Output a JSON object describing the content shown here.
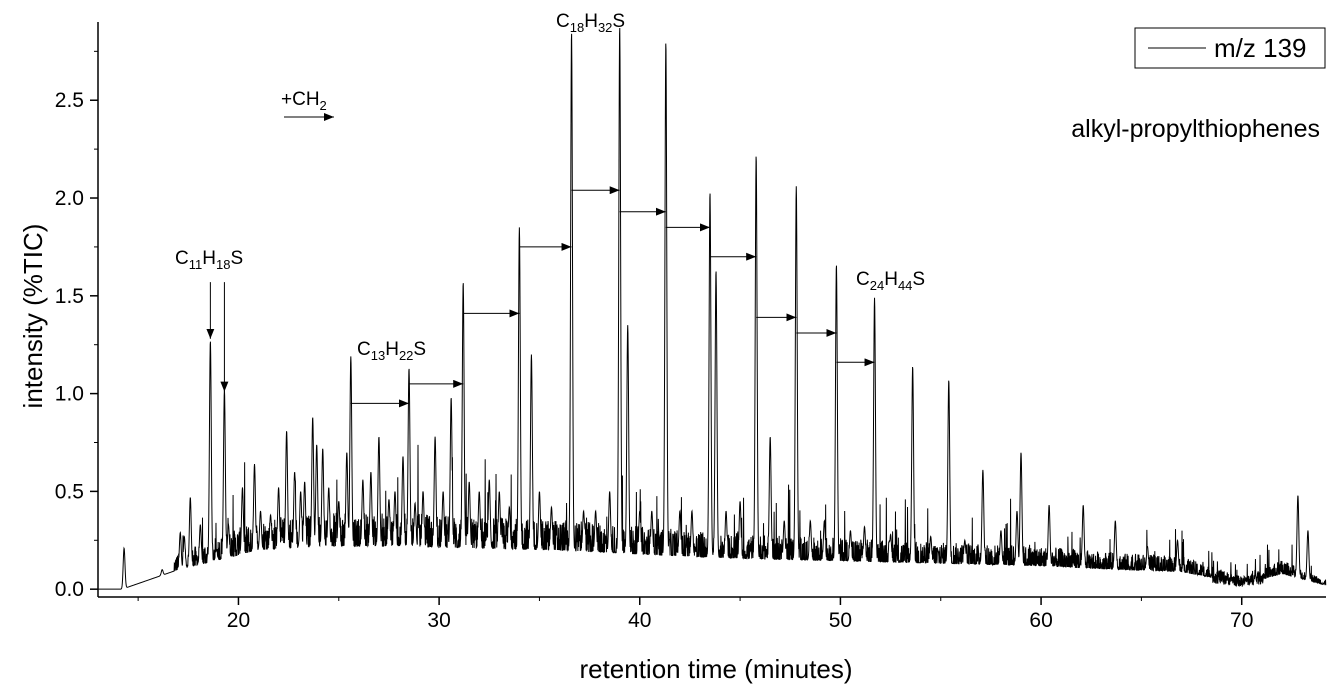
{
  "chart_data": {
    "type": "line",
    "title": "",
    "xlabel": "retention time (minutes)",
    "ylabel": "intensity (%TIC)",
    "xlim": [
      13,
      74.2
    ],
    "ylim": [
      -0.04,
      2.9
    ],
    "xticks": [
      20,
      30,
      40,
      50,
      60,
      70
    ],
    "yticks": [
      0.0,
      0.5,
      1.0,
      1.5,
      2.0,
      2.5
    ],
    "ytick_labels": [
      "0.0",
      "0.5",
      "1.0",
      "1.5",
      "2.0",
      "2.5"
    ],
    "legend": {
      "position": "top-right",
      "entries": [
        "m/z 139"
      ]
    },
    "subtitle": "alkyl-propylthiophenes",
    "series": [
      {
        "name": "m/z 139",
        "color": "#000000",
        "baseline": [
          [
            13.0,
            0.0
          ],
          [
            14.2,
            0.0
          ],
          [
            17.0,
            0.1
          ],
          [
            19.0,
            0.15
          ],
          [
            21.0,
            0.2
          ],
          [
            24.0,
            0.22
          ],
          [
            28.0,
            0.22
          ],
          [
            32.0,
            0.21
          ],
          [
            36.0,
            0.2
          ],
          [
            40.0,
            0.18
          ],
          [
            44.0,
            0.16
          ],
          [
            48.0,
            0.15
          ],
          [
            52.0,
            0.14
          ],
          [
            56.0,
            0.13
          ],
          [
            60.0,
            0.12
          ],
          [
            64.0,
            0.1
          ],
          [
            67.0,
            0.09
          ],
          [
            69.0,
            0.05
          ],
          [
            70.0,
            0.03
          ],
          [
            71.0,
            0.05
          ],
          [
            72.0,
            0.08
          ],
          [
            74.2,
            0.02
          ]
        ],
        "peaks": [
          [
            14.3,
            0.21
          ],
          [
            16.2,
            0.1
          ],
          [
            17.1,
            0.29
          ],
          [
            17.3,
            0.27
          ],
          [
            17.6,
            0.47
          ],
          [
            18.1,
            0.33
          ],
          [
            18.6,
            1.27
          ],
          [
            18.9,
            0.2
          ],
          [
            19.3,
            1.02
          ],
          [
            19.5,
            0.33
          ],
          [
            20.2,
            0.52
          ],
          [
            20.8,
            0.64
          ],
          [
            21.1,
            0.4
          ],
          [
            21.6,
            0.38
          ],
          [
            22.0,
            0.52
          ],
          [
            22.4,
            0.81
          ],
          [
            22.8,
            0.6
          ],
          [
            23.1,
            0.5
          ],
          [
            23.3,
            0.55
          ],
          [
            23.7,
            0.88
          ],
          [
            23.9,
            0.74
          ],
          [
            24.2,
            0.72
          ],
          [
            24.5,
            0.52
          ],
          [
            25.0,
            0.45
          ],
          [
            25.4,
            0.7
          ],
          [
            25.6,
            1.19
          ],
          [
            26.2,
            0.56
          ],
          [
            26.6,
            0.6
          ],
          [
            27.0,
            0.78
          ],
          [
            27.5,
            0.46
          ],
          [
            27.8,
            0.5
          ],
          [
            28.2,
            0.68
          ],
          [
            28.5,
            1.13
          ],
          [
            28.8,
            0.44
          ],
          [
            29.2,
            0.5
          ],
          [
            29.8,
            0.78
          ],
          [
            30.2,
            0.5
          ],
          [
            30.6,
            0.98
          ],
          [
            31.2,
            1.57
          ],
          [
            31.5,
            0.55
          ],
          [
            32.0,
            0.5
          ],
          [
            32.5,
            0.56
          ],
          [
            33.0,
            0.5
          ],
          [
            33.5,
            0.42
          ],
          [
            34.0,
            1.85
          ],
          [
            34.6,
            1.2
          ],
          [
            35.0,
            0.5
          ],
          [
            35.6,
            0.42
          ],
          [
            36.6,
            2.85
          ],
          [
            37.2,
            0.4
          ],
          [
            37.8,
            0.4
          ],
          [
            38.5,
            0.5
          ],
          [
            39.0,
            2.88
          ],
          [
            39.4,
            1.35
          ],
          [
            40.0,
            0.4
          ],
          [
            40.6,
            0.4
          ],
          [
            41.3,
            2.8
          ],
          [
            42.0,
            0.4
          ],
          [
            42.6,
            0.4
          ],
          [
            43.5,
            2.03
          ],
          [
            43.8,
            1.63
          ],
          [
            44.3,
            0.4
          ],
          [
            45.0,
            0.45
          ],
          [
            45.8,
            2.22
          ],
          [
            46.5,
            0.78
          ],
          [
            47.2,
            0.35
          ],
          [
            47.8,
            2.06
          ],
          [
            48.5,
            0.35
          ],
          [
            49.2,
            0.35
          ],
          [
            49.8,
            1.66
          ],
          [
            50.5,
            0.3
          ],
          [
            51.2,
            0.32
          ],
          [
            51.7,
            1.49
          ],
          [
            52.5,
            0.28
          ],
          [
            53.6,
            1.14
          ],
          [
            54.5,
            0.27
          ],
          [
            55.4,
            1.07
          ],
          [
            56.2,
            0.25
          ],
          [
            57.1,
            0.61
          ],
          [
            58.0,
            0.3
          ],
          [
            58.8,
            0.4
          ],
          [
            59.0,
            0.7
          ],
          [
            60.4,
            0.43
          ],
          [
            62.1,
            0.43
          ],
          [
            63.7,
            0.35
          ],
          [
            65.3,
            0.22
          ],
          [
            66.8,
            0.25
          ],
          [
            72.8,
            0.48
          ],
          [
            73.3,
            0.3
          ]
        ]
      }
    ],
    "annotations": {
      "formulas": [
        {
          "parts": [
            "C",
            "11",
            "H",
            "18",
            "S"
          ]
        },
        {
          "parts": [
            "C",
            "13",
            "H",
            "22",
            "S"
          ]
        },
        {
          "parts": [
            "C",
            "18",
            "H",
            "32",
            "S"
          ]
        },
        {
          "parts": [
            "C",
            "24",
            "H",
            "44",
            "S"
          ]
        }
      ],
      "ch2_label": {
        "prefix": "+CH",
        "sub": "2"
      },
      "down_arrows": [
        {
          "x": 18.6,
          "y_from": 1.57,
          "y_to": 1.27
        },
        {
          "x": 19.3,
          "y_from": 1.57,
          "y_to": 1.0
        }
      ],
      "homolog_arrows": [
        {
          "x1": 25.6,
          "x2": 28.5,
          "y": 0.95
        },
        {
          "x1": 28.5,
          "x2": 31.2,
          "y": 1.05
        },
        {
          "x1": 31.2,
          "x2": 34.0,
          "y": 1.41
        },
        {
          "x1": 34.0,
          "x2": 36.6,
          "y": 1.75
        },
        {
          "x1": 36.6,
          "x2": 39.0,
          "y": 2.04
        },
        {
          "x1": 39.0,
          "x2": 41.3,
          "y": 1.93
        },
        {
          "x1": 41.3,
          "x2": 43.5,
          "y": 1.85
        },
        {
          "x1": 43.5,
          "x2": 45.8,
          "y": 1.7
        },
        {
          "x1": 45.8,
          "x2": 47.8,
          "y": 1.39
        },
        {
          "x1": 47.8,
          "x2": 49.8,
          "y": 1.31
        },
        {
          "x1": 49.8,
          "x2": 51.7,
          "y": 1.16
        }
      ]
    }
  }
}
